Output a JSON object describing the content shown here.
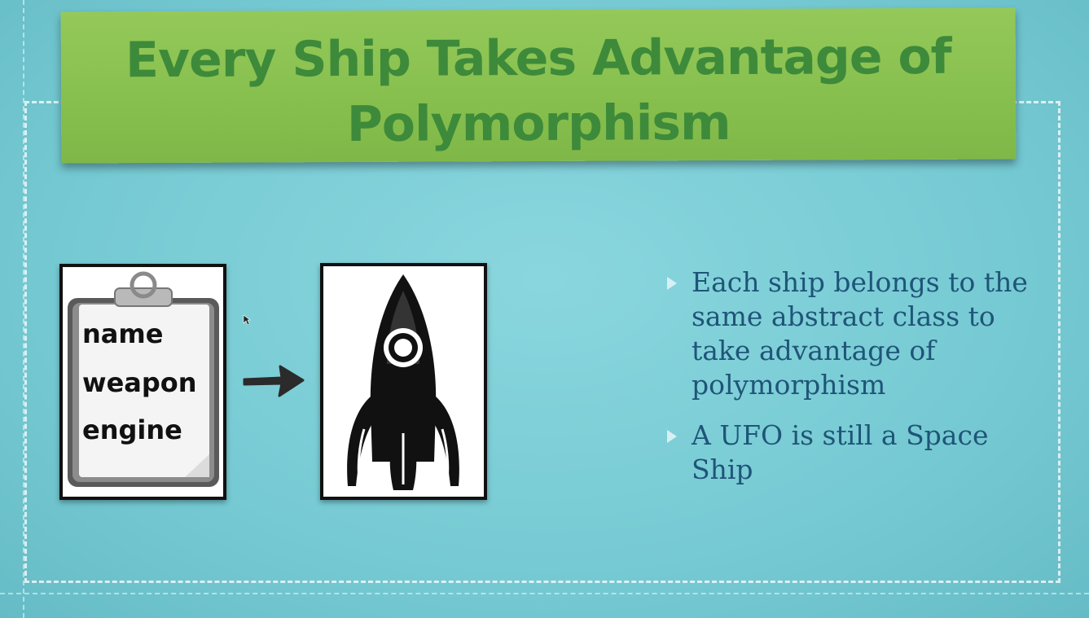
{
  "slide": {
    "title": "Every Ship Takes Advantage of Polymorphism",
    "clipboard_fields": [
      "name",
      "weapon",
      "engine"
    ],
    "bullets": [
      "Each ship belongs to the same abstract class to take advantage of polymorphism",
      "A UFO is still a Space Ship"
    ]
  },
  "icons": {
    "clipboard": "clipboard-icon",
    "arrow": "arrow-right-icon",
    "rocket": "rocket-icon",
    "cursor": "mouse-cursor-icon",
    "bullet": "triangle-bullet-icon"
  },
  "colors": {
    "background": "#79cdd6",
    "banner": "#8dc455",
    "title_text": "#3e8a3b",
    "bullet_text": "#1f5578"
  }
}
